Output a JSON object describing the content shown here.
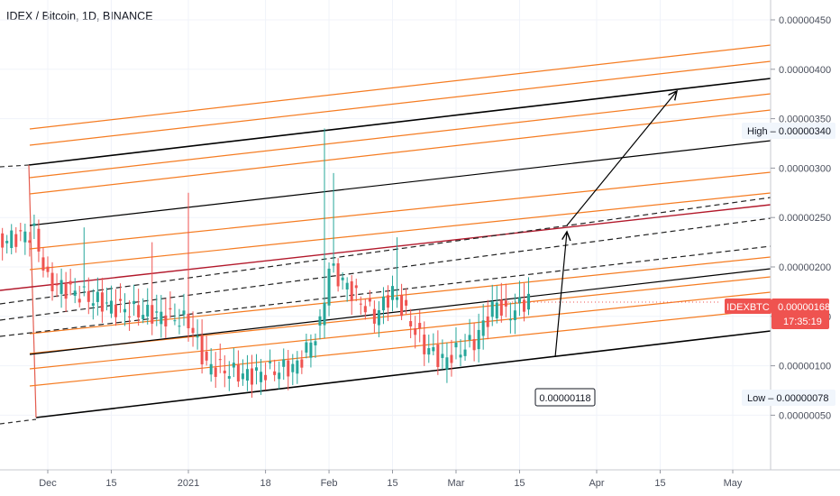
{
  "header": {
    "title": "IDEX / Bitcoin, 1D, BINANCE"
  },
  "colors": {
    "up": "#26a69a",
    "down": "#ef5350",
    "channel": "#000000",
    "fib": "#f57c22",
    "midline": "#b2182b",
    "label_red": "#ef5350"
  },
  "chart_data": {
    "type": "candlestick",
    "symbol": "IDEXBTC",
    "y_ticks": [
      "0.00000450",
      "0.00000400",
      "0.00000350",
      "0.00000300",
      "0.00000250",
      "0.00000200",
      "0.00000150",
      "0.00000100",
      "0.00000050"
    ],
    "y_tick_values": [
      4.5e-06,
      4e-06,
      3.5e-06,
      3e-06,
      2.5e-06,
      2e-06,
      1.5e-06,
      1e-06,
      5e-07
    ],
    "x_ticks": [
      "Dec",
      "15",
      "2021",
      "18",
      "Feb",
      "15",
      "Mar",
      "15",
      "Apr",
      "15",
      "May"
    ],
    "x_tick_dates": [
      "2020-12-01",
      "2020-12-15",
      "2021-01-01",
      "2021-01-18",
      "2021-02-01",
      "2021-02-15",
      "2021-03-01",
      "2021-03-15",
      "2021-04-01",
      "2021-04-15",
      "2021-05-01"
    ],
    "high_label": "High",
    "high_value": "0.00000340",
    "low_label": "Low",
    "low_value": "0.00000078",
    "last_symbol": "IDEXBTC",
    "last_value": "0.00000168",
    "countdown": "17:35:19",
    "annotation": "0.00000118",
    "target_level": 3.8e-06,
    "date_range": [
      "2020-11-20",
      "2021-05-13"
    ]
  }
}
